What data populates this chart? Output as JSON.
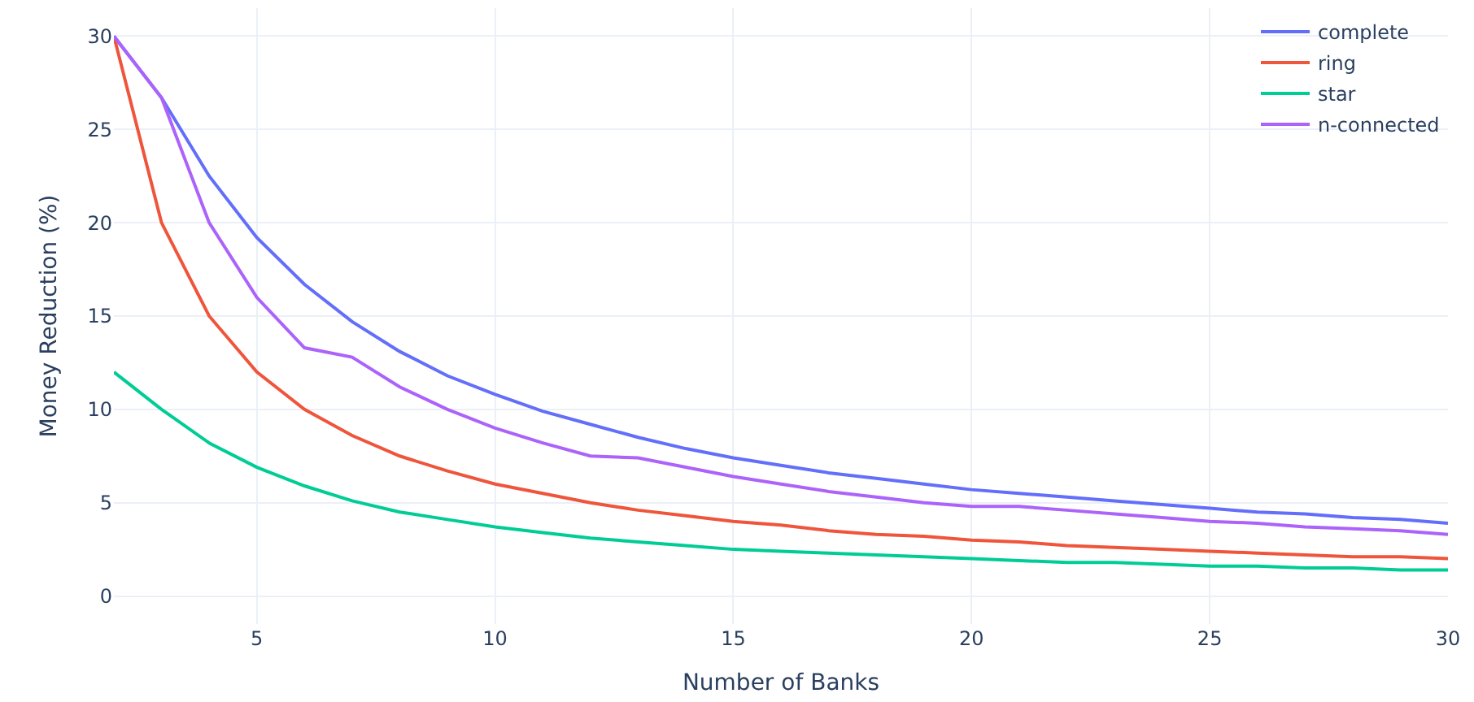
{
  "chart_data": {
    "type": "line",
    "xlabel": "Number of Banks",
    "ylabel": "Money Reduction (%)",
    "x": [
      2,
      3,
      4,
      5,
      6,
      7,
      8,
      9,
      10,
      11,
      12,
      13,
      14,
      15,
      16,
      17,
      18,
      19,
      20,
      21,
      22,
      23,
      24,
      25,
      26,
      27,
      28,
      29,
      30
    ],
    "series": [
      {
        "name": "complete",
        "color": "#636efa",
        "values": [
          30,
          26.7,
          22.5,
          19.2,
          16.7,
          14.7,
          13.1,
          11.8,
          10.8,
          9.9,
          9.2,
          8.5,
          7.9,
          7.4,
          7.0,
          6.6,
          6.3,
          6.0,
          5.7,
          5.5,
          5.3,
          5.1,
          4.9,
          4.7,
          4.5,
          4.4,
          4.2,
          4.1,
          3.9
        ]
      },
      {
        "name": "ring",
        "color": "#ef553b",
        "values": [
          30,
          20,
          15,
          12,
          10,
          8.6,
          7.5,
          6.7,
          6,
          5.5,
          5,
          4.6,
          4.3,
          4,
          3.8,
          3.5,
          3.3,
          3.2,
          3,
          2.9,
          2.7,
          2.6,
          2.5,
          2.4,
          2.3,
          2.2,
          2.1,
          2.1,
          2
        ]
      },
      {
        "name": "star",
        "color": "#00cc96",
        "values": [
          12,
          10,
          8.2,
          6.9,
          5.9,
          5.1,
          4.5,
          4.1,
          3.7,
          3.4,
          3.1,
          2.9,
          2.7,
          2.5,
          2.4,
          2.3,
          2.2,
          2.1,
          2.0,
          1.9,
          1.8,
          1.8,
          1.7,
          1.6,
          1.6,
          1.5,
          1.5,
          1.4,
          1.4
        ]
      },
      {
        "name": "n-connected",
        "color": "#ab63fa",
        "values": [
          30,
          26.7,
          20,
          16,
          13.3,
          12.8,
          11.2,
          10,
          9,
          8.2,
          7.5,
          7.4,
          6.9,
          6.4,
          6.0,
          5.6,
          5.3,
          5.0,
          4.8,
          4.8,
          4.6,
          4.4,
          4.2,
          4.0,
          3.9,
          3.7,
          3.6,
          3.5,
          3.3
        ]
      }
    ],
    "xlim": [
      2,
      30
    ],
    "xticks": [
      5,
      10,
      15,
      20,
      25,
      30
    ],
    "ylim": [
      -1.5,
      31.5
    ],
    "yticks": [
      0,
      5,
      10,
      15,
      20,
      25,
      30
    ],
    "grid": true,
    "legend": "top right",
    "marker": "none",
    "line_style": "solid"
  }
}
